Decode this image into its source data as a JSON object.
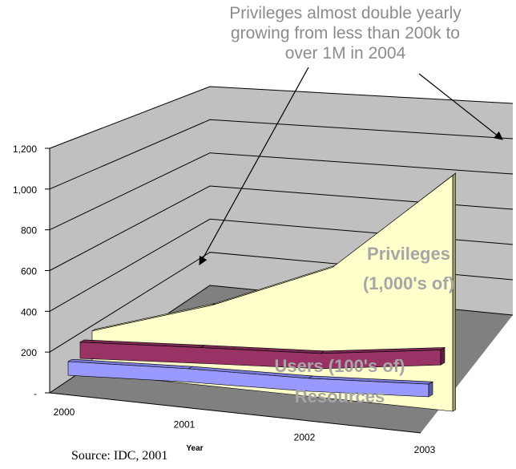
{
  "annotation": {
    "lines": [
      "Privileges almost double yearly",
      "growing from less than 200k to",
      "over 1M in 2004"
    ]
  },
  "source_note": "Source: IDC, 2001",
  "colors": {
    "privileges": "#ffffcc",
    "users": "#993366",
    "resources": "#9999ff",
    "annotation_text": "#8c8c8c",
    "series_label": "#a6a6a6",
    "wall": "#c0c0c0",
    "floor": "#808080"
  },
  "chart_data": {
    "type": "area",
    "subtype": "3d-ribbon",
    "title": "",
    "xlabel": "Year",
    "ylabel": "",
    "x": [
      "2000",
      "2001",
      "2002",
      "2003"
    ],
    "ylim": [
      0,
      1200
    ],
    "yticks": [
      "-",
      "200",
      "400",
      "600",
      "800",
      "1,000",
      "1,200"
    ],
    "grid": true,
    "series": [
      {
        "name": "Resources",
        "values": [
          120,
          150,
          170,
          210
        ]
      },
      {
        "name": "Users (100's of)",
        "values": [
          180,
          220,
          260,
          350
        ]
      },
      {
        "name": "Privileges (1,000's of)",
        "values": [
          200,
          390,
          650,
          1200
        ]
      }
    ]
  }
}
